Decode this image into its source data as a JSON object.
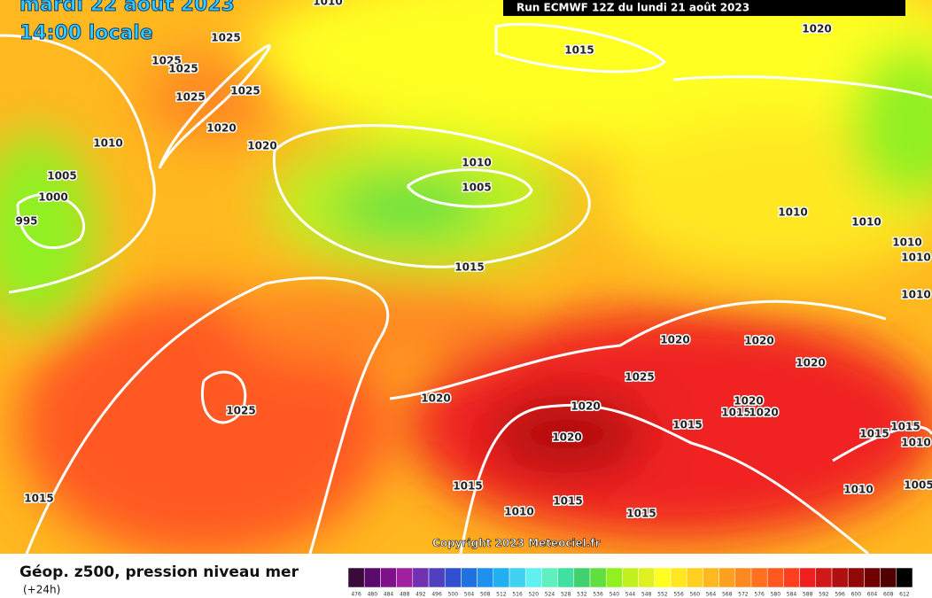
{
  "header": {
    "date": "mardi 22 août 2023",
    "time": "14:00 locale",
    "run": "Run ECMWF 12Z du lundi 21 août 2023"
  },
  "isobar_labels": [
    "1010",
    "1025",
    "1025",
    "1025",
    "1025",
    "1025",
    "1020",
    "1020",
    "1010",
    "1005",
    "1000",
    "995",
    "1015",
    "1020",
    "1010",
    "1005",
    "1015",
    "1010",
    "1010",
    "1010",
    "1010",
    "1010",
    "1020",
    "1020",
    "1020",
    "1025",
    "1020",
    "1025",
    "1020",
    "1020",
    "1020",
    "1015",
    "1020",
    "1015",
    "1015",
    "1015",
    "1010",
    "1005",
    "1010",
    "1015",
    "1015",
    "1010",
    "1015",
    "1015"
  ],
  "copyright": "Copyright 2023 Meteociel.fr",
  "footer": {
    "title": "Géop. z500, pression niveau mer",
    "lead": "(+24h)"
  },
  "color_scale": {
    "colors": [
      "#3a0a3a",
      "#5a0a6a",
      "#80108a",
      "#a020a0",
      "#7030b0",
      "#5040c0",
      "#3050d0",
      "#2070e0",
      "#2090f0",
      "#20b0f0",
      "#40d0f0",
      "#60f0f0",
      "#60f0c0",
      "#40e0a0",
      "#40d070",
      "#60e040",
      "#90f020",
      "#c0f020",
      "#e0f020",
      "#ffff20",
      "#ffe820",
      "#ffd020",
      "#ffb820",
      "#ffa020",
      "#ff8820",
      "#ff7020",
      "#ff5820",
      "#ff4020",
      "#f02020",
      "#d01818",
      "#b01010",
      "#900808",
      "#700000",
      "#500000",
      "#000000"
    ],
    "labels": [
      "476",
      "480",
      "484",
      "488",
      "492",
      "496",
      "500",
      "504",
      "508",
      "512",
      "516",
      "520",
      "524",
      "528",
      "532",
      "536",
      "540",
      "544",
      "548",
      "552",
      "556",
      "560",
      "564",
      "568",
      "572",
      "576",
      "580",
      "584",
      "588",
      "592",
      "596",
      "600",
      "604",
      "608",
      "612"
    ]
  }
}
